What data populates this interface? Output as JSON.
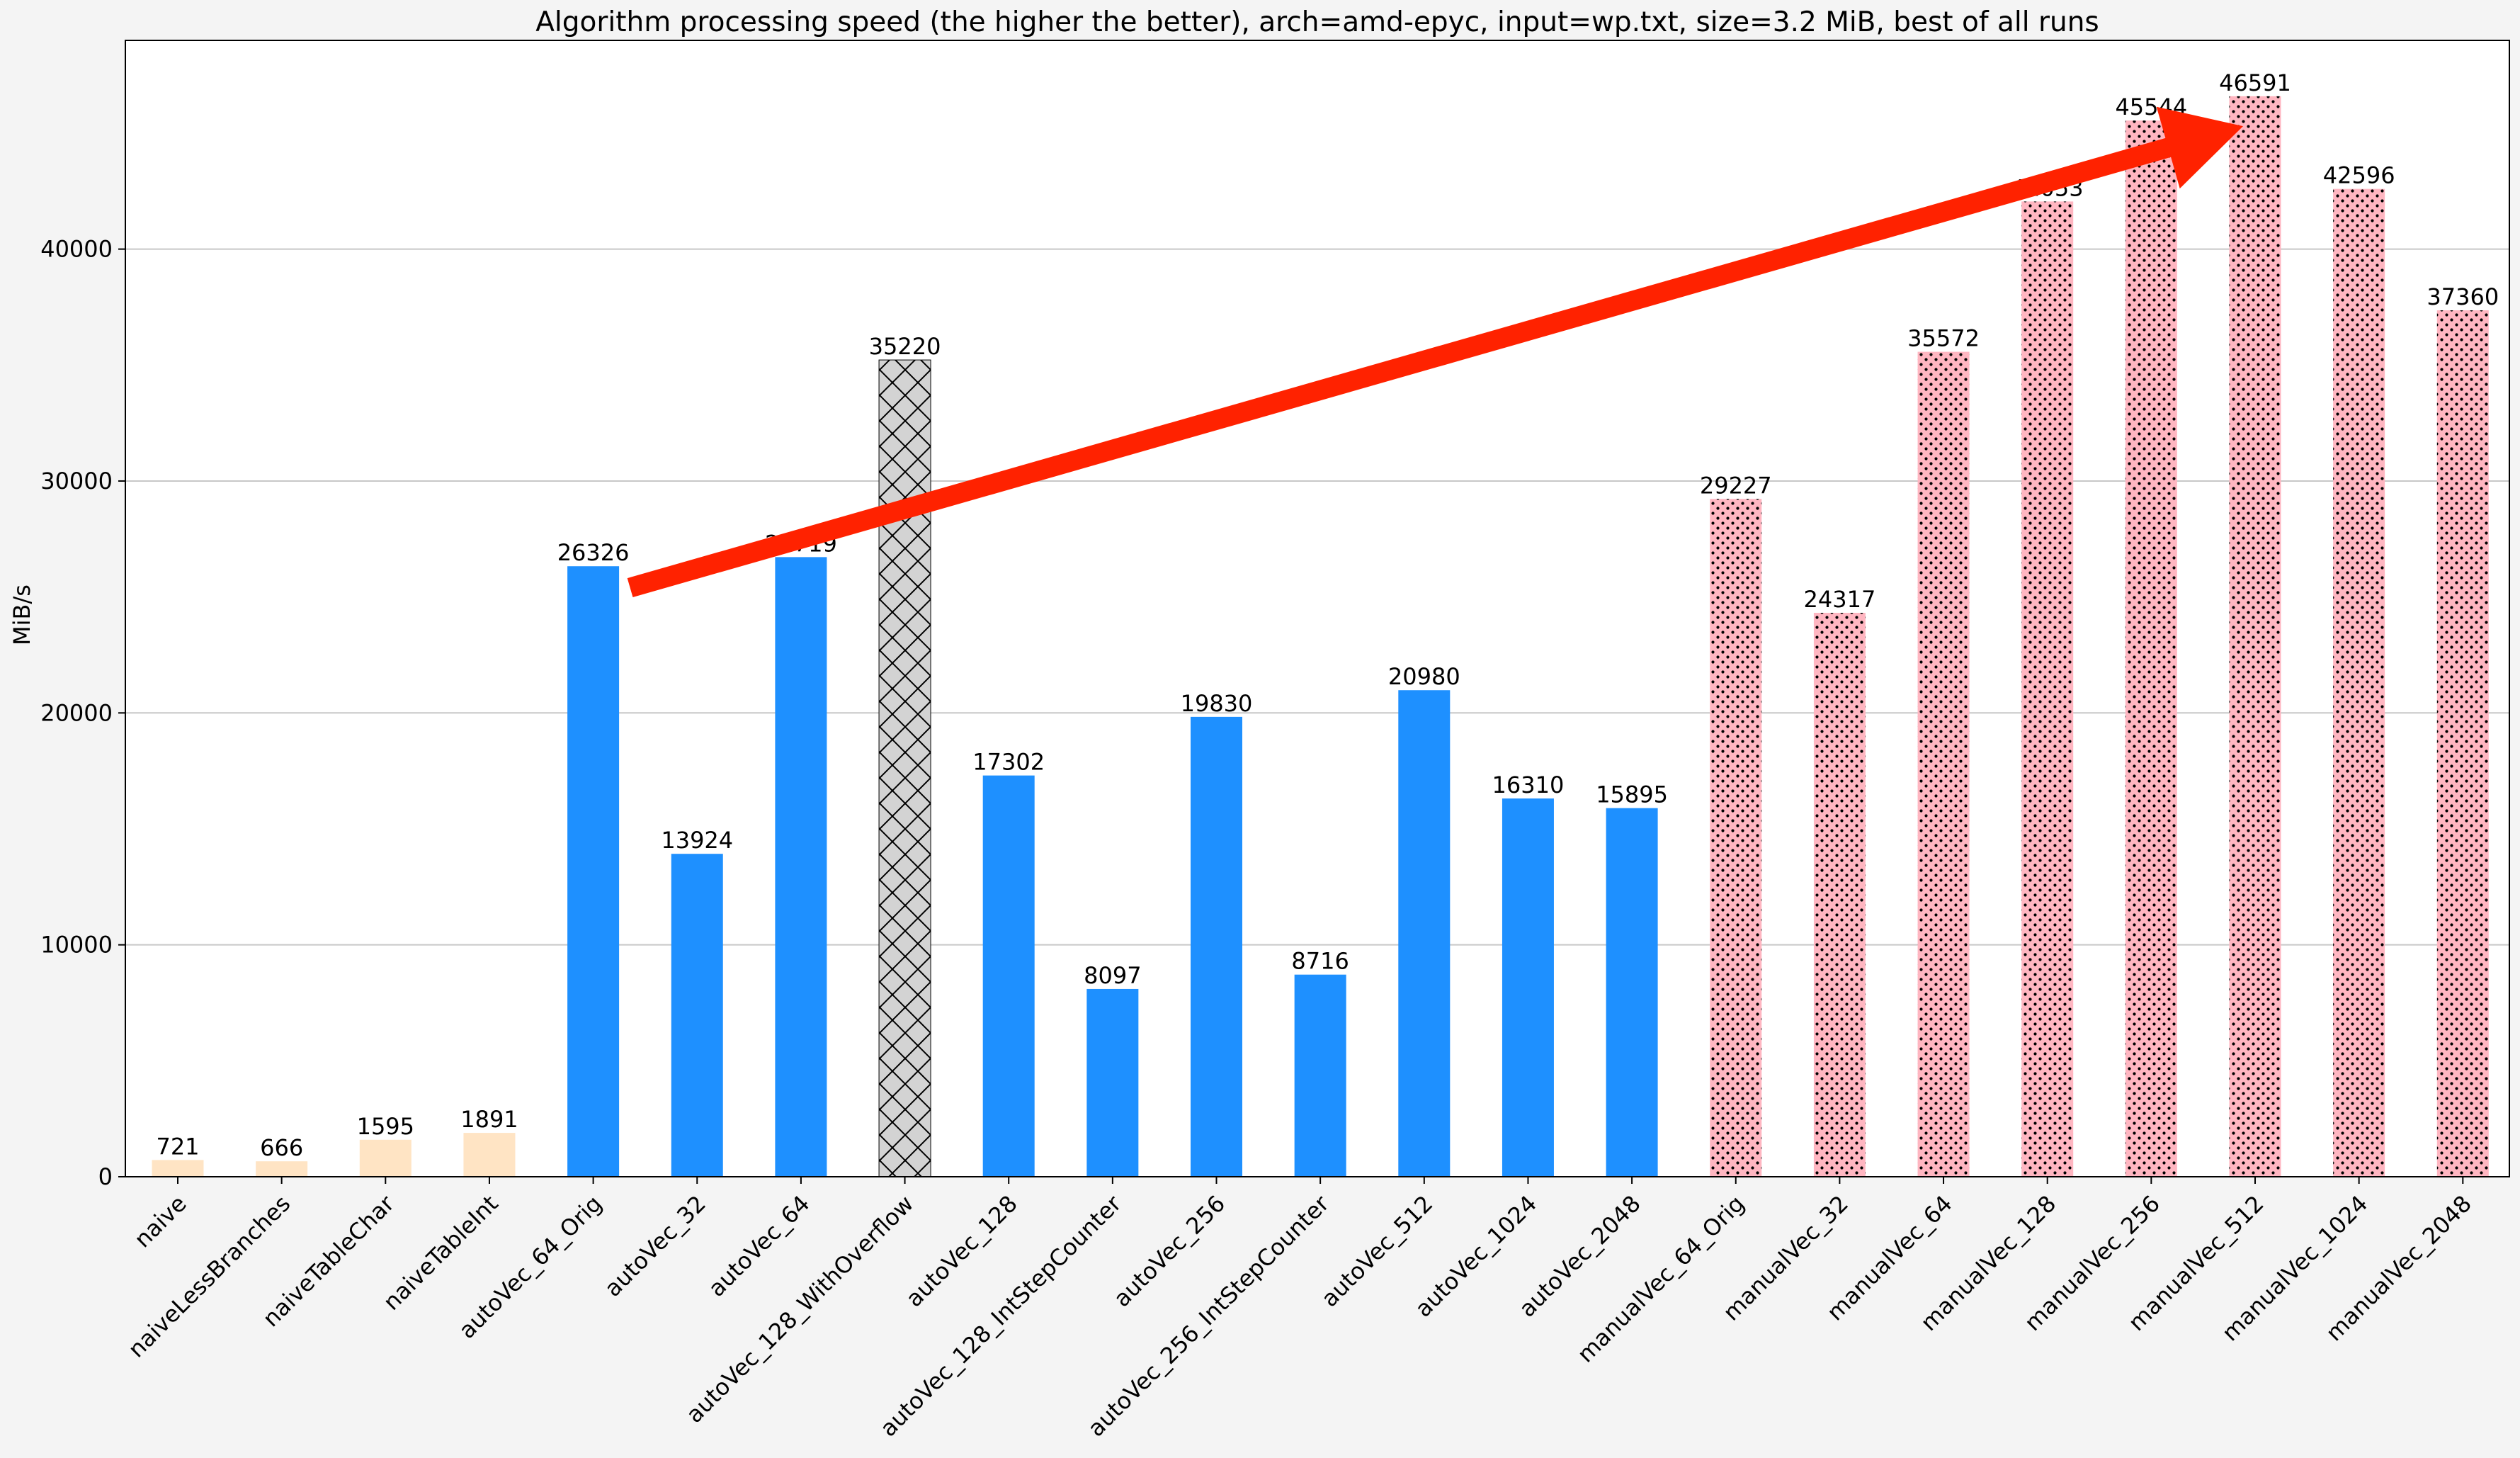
{
  "chart_data": {
    "type": "bar",
    "title": "Algorithm processing speed (the higher the better), arch=amd-epyc, input=wp.txt, size=3.2 MiB, best of all runs",
    "xlabel": "",
    "ylabel": "MiB/s",
    "ylim": [
      0,
      49000
    ],
    "yticks": [
      0,
      10000,
      20000,
      30000,
      40000
    ],
    "grid": "horizontal",
    "categories": [
      "naive",
      "naiveLessBranches",
      "naiveTableChar",
      "naiveTableInt",
      "autoVec_64_Orig",
      "autoVec_32",
      "autoVec_64",
      "autoVec_128_WithOverflow",
      "autoVec_128",
      "autoVec_128_IntStepCounter",
      "autoVec_256",
      "autoVec_256_IntStepCounter",
      "autoVec_512",
      "autoVec_1024",
      "autoVec_2048",
      "manualVec_64_Orig",
      "manualVec_32",
      "manualVec_64",
      "manualVec_128",
      "manualVec_256",
      "manualVec_512",
      "manualVec_1024",
      "manualVec_2048"
    ],
    "values": [
      721,
      666,
      1595,
      1891,
      26326,
      13924,
      26719,
      35220,
      17302,
      8097,
      19830,
      8716,
      20980,
      16310,
      15895,
      29227,
      24317,
      35572,
      42053,
      45544,
      46591,
      42596,
      37360
    ],
    "data_labels": [
      "721",
      "666",
      "1595",
      "1891",
      "26326",
      "13924",
      "26719",
      "35220",
      "17302",
      "8097",
      "19830",
      "8716",
      "20980",
      "16310",
      "15895",
      "29227",
      "24317",
      "35572",
      "42053",
      "45544",
      "46591",
      "42596",
      "37360"
    ],
    "bar_styles": [
      "naive",
      "naive",
      "naive",
      "naive",
      "auto",
      "auto",
      "auto",
      "hatched",
      "auto",
      "auto",
      "auto",
      "auto",
      "auto",
      "auto",
      "auto",
      "manual",
      "manual",
      "manual",
      "manual",
      "manual",
      "manual",
      "manual",
      "manual"
    ],
    "colors": {
      "naive": "#ffe4c4",
      "auto": "#1e90ff",
      "hatched": "#d3d3d3",
      "manual": "#ffb6c1",
      "arrow": "#ff2200",
      "grid": "#c8c8c8"
    },
    "annotation_arrow": {
      "from_category": "autoVec_64_Orig",
      "from_value": 25400,
      "to_category": "manualVec_512",
      "to_value": 45300
    }
  }
}
